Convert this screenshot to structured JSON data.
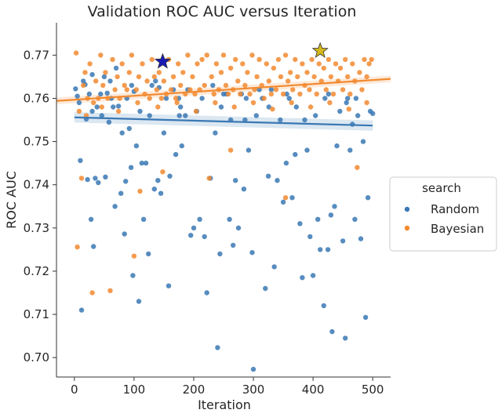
{
  "chart_data": {
    "type": "scatter",
    "title": "Validation ROC AUC versus Iteration",
    "xlabel": "Iteration",
    "ylabel": "ROC AUC",
    "xlim": [
      -30,
      530
    ],
    "ylim": [
      0.6955,
      0.7775
    ],
    "xticks": [
      0,
      100,
      200,
      300,
      400,
      500
    ],
    "yticks": [
      0.7,
      0.71,
      0.72,
      0.73,
      0.74,
      0.75,
      0.76,
      0.77
    ],
    "grid": false,
    "legend": {
      "title": "search",
      "location": "center-right outside",
      "entries": [
        "Random",
        "Bayesian"
      ]
    },
    "series": [
      {
        "name": "Random",
        "color": "#3a78b4",
        "marker": "dot",
        "trend": {
          "x": [
            0,
            500
          ],
          "y": [
            0.7556,
            0.7537
          ],
          "band": 0.0012
        },
        "best": {
          "x": 148,
          "y": 0.7685,
          "marker": "star",
          "color": "#1a1ab4"
        },
        "points": [
          [
            2,
            0.7622
          ],
          [
            5,
            0.7605
          ],
          [
            8,
            0.759
          ],
          [
            10,
            0.7456
          ],
          [
            12,
            0.711
          ],
          [
            15,
            0.764
          ],
          [
            18,
            0.7632
          ],
          [
            20,
            0.7552
          ],
          [
            22,
            0.7412
          ],
          [
            25,
            0.761
          ],
          [
            28,
            0.732
          ],
          [
            30,
            0.7655
          ],
          [
            32,
            0.7257
          ],
          [
            35,
            0.7415
          ],
          [
            38,
            0.758
          ],
          [
            40,
            0.7405
          ],
          [
            44,
            0.761
          ],
          [
            46,
            0.756
          ],
          [
            50,
            0.765
          ],
          [
            52,
            0.7418
          ],
          [
            55,
            0.7612
          ],
          [
            58,
            0.7545
          ],
          [
            60,
            0.764
          ],
          [
            65,
            0.758
          ],
          [
            68,
            0.735
          ],
          [
            70,
            0.767
          ],
          [
            74,
            0.7582
          ],
          [
            78,
            0.738
          ],
          [
            80,
            0.752
          ],
          [
            84,
            0.7286
          ],
          [
            86,
            0.7408
          ],
          [
            88,
            0.76
          ],
          [
            92,
            0.753
          ],
          [
            95,
            0.744
          ],
          [
            98,
            0.719
          ],
          [
            100,
            0.7616
          ],
          [
            104,
            0.749
          ],
          [
            108,
            0.713
          ],
          [
            110,
            0.757
          ],
          [
            113,
            0.745
          ],
          [
            116,
            0.732
          ],
          [
            120,
            0.745
          ],
          [
            124,
            0.724
          ],
          [
            126,
            0.756
          ],
          [
            130,
            0.763
          ],
          [
            134,
            0.739
          ],
          [
            136,
            0.764
          ],
          [
            140,
            0.741
          ],
          [
            142,
            0.7625
          ],
          [
            145,
            0.738
          ],
          [
            150,
            0.752
          ],
          [
            154,
            0.76
          ],
          [
            158,
            0.7166
          ],
          [
            160,
            0.742
          ],
          [
            166,
            0.762
          ],
          [
            170,
            0.747
          ],
          [
            175,
            0.76
          ],
          [
            178,
            0.758
          ],
          [
            180,
            0.749
          ],
          [
            186,
            0.756
          ],
          [
            190,
            0.762
          ],
          [
            195,
            0.7283
          ],
          [
            200,
            0.73
          ],
          [
            205,
            0.757
          ],
          [
            210,
            0.732
          ],
          [
            214,
            0.76
          ],
          [
            218,
            0.728
          ],
          [
            222,
            0.715
          ],
          [
            228,
            0.7415
          ],
          [
            232,
            0.763
          ],
          [
            236,
            0.752
          ],
          [
            240,
            0.7023
          ],
          [
            244,
            0.724
          ],
          [
            250,
            0.761
          ],
          [
            255,
            0.761
          ],
          [
            260,
            0.732
          ],
          [
            262,
            0.755
          ],
          [
            266,
            0.726
          ],
          [
            270,
            0.741
          ],
          [
            275,
            0.73
          ],
          [
            280,
            0.761
          ],
          [
            284,
            0.739
          ],
          [
            288,
            0.76
          ],
          [
            292,
            0.748
          ],
          [
            298,
            0.7243
          ],
          [
            300,
            0.6973
          ],
          [
            305,
            0.756
          ],
          [
            310,
            0.762
          ],
          [
            315,
            0.76
          ],
          [
            320,
            0.716
          ],
          [
            325,
            0.742
          ],
          [
            330,
            0.762
          ],
          [
            335,
            0.721
          ],
          [
            340,
            0.741
          ],
          [
            345,
            0.755
          ],
          [
            350,
            0.736
          ],
          [
            355,
            0.745
          ],
          [
            360,
            0.76
          ],
          [
            365,
            0.737
          ],
          [
            370,
            0.747
          ],
          [
            372,
            0.758
          ],
          [
            378,
            0.731
          ],
          [
            382,
            0.7185
          ],
          [
            386,
            0.755
          ],
          [
            390,
            0.748
          ],
          [
            395,
            0.728
          ],
          [
            400,
            0.719
          ],
          [
            404,
            0.756
          ],
          [
            408,
            0.732
          ],
          [
            412,
            0.725
          ],
          [
            418,
            0.712
          ],
          [
            420,
            0.76
          ],
          [
            425,
            0.725
          ],
          [
            430,
            0.733
          ],
          [
            432,
            0.706
          ],
          [
            436,
            0.735
          ],
          [
            440,
            0.749
          ],
          [
            445,
            0.757
          ],
          [
            450,
            0.727
          ],
          [
            454,
            0.7045
          ],
          [
            458,
            0.76
          ],
          [
            462,
            0.748
          ],
          [
            466,
            0.754
          ],
          [
            470,
            0.732
          ],
          [
            475,
            0.756
          ],
          [
            480,
            0.7275
          ],
          [
            484,
            0.75
          ],
          [
            488,
            0.7093
          ],
          [
            492,
            0.737
          ],
          [
            496,
            0.757
          ],
          [
            500,
            0.7565
          ],
          [
            30,
            0.757
          ],
          [
            62,
            0.76
          ],
          [
            96,
            0.763
          ],
          [
            176,
            0.756
          ],
          [
            246,
            0.758
          ],
          [
            286,
            0.755
          ],
          [
            326,
            0.758
          ],
          [
            356,
            0.761
          ],
          [
            426,
            0.761
          ],
          [
            456,
            0.759
          ],
          [
            472,
            0.76
          ]
        ]
      },
      {
        "name": "Bayesian",
        "color": "#f28a30",
        "marker": "dot",
        "trend": {
          "x": [
            -30,
            530
          ],
          "y": [
            0.7594,
            0.7645
          ],
          "band": 0.0008
        },
        "best": {
          "x": 412,
          "y": 0.771,
          "marker": "star",
          "color": "#d4b81c"
        },
        "points": [
          [
            3,
            0.7705
          ],
          [
            5,
            0.7256
          ],
          [
            8,
            0.757
          ],
          [
            12,
            0.7415
          ],
          [
            15,
            0.763
          ],
          [
            18,
            0.766
          ],
          [
            22,
            0.76
          ],
          [
            26,
            0.768
          ],
          [
            30,
            0.715
          ],
          [
            32,
            0.759
          ],
          [
            36,
            0.764
          ],
          [
            40,
            0.76
          ],
          [
            44,
            0.77
          ],
          [
            48,
            0.763
          ],
          [
            52,
            0.766
          ],
          [
            56,
            0.76
          ],
          [
            60,
            0.7155
          ],
          [
            64,
            0.769
          ],
          [
            68,
            0.762
          ],
          [
            72,
            0.765
          ],
          [
            76,
            0.76
          ],
          [
            80,
            0.768
          ],
          [
            84,
            0.763
          ],
          [
            88,
            0.762
          ],
          [
            92,
            0.766
          ],
          [
            96,
            0.77
          ],
          [
            100,
            0.7235
          ],
          [
            104,
            0.762
          ],
          [
            108,
            0.765
          ],
          [
            110,
            0.7385
          ],
          [
            114,
            0.768
          ],
          [
            118,
            0.761
          ],
          [
            122,
            0.764
          ],
          [
            126,
            0.76
          ],
          [
            130,
            0.769
          ],
          [
            134,
            0.765
          ],
          [
            138,
            0.762
          ],
          [
            142,
            0.766
          ],
          [
            146,
            0.76
          ],
          [
            150,
            0.764
          ],
          [
            154,
            0.761
          ],
          [
            158,
            0.769
          ],
          [
            162,
            0.762
          ],
          [
            166,
            0.765
          ],
          [
            170,
            0.76
          ],
          [
            174,
            0.768
          ],
          [
            178,
            0.763
          ],
          [
            182,
            0.766
          ],
          [
            186,
            0.761
          ],
          [
            190,
            0.77
          ],
          [
            194,
            0.762
          ],
          [
            198,
            0.765
          ],
          [
            202,
            0.761
          ],
          [
            206,
            0.768
          ],
          [
            210,
            0.762
          ],
          [
            214,
            0.769
          ],
          [
            218,
            0.763
          ],
          [
            222,
            0.77
          ],
          [
            226,
            0.7415
          ],
          [
            230,
            0.765
          ],
          [
            234,
            0.761
          ],
          [
            238,
            0.768
          ],
          [
            242,
            0.762
          ],
          [
            246,
            0.766
          ],
          [
            250,
            0.77
          ],
          [
            254,
            0.763
          ],
          [
            258,
            0.761
          ],
          [
            262,
            0.767
          ],
          [
            266,
            0.762
          ],
          [
            270,
            0.769
          ],
          [
            274,
            0.764
          ],
          [
            278,
            0.761
          ],
          [
            282,
            0.768
          ],
          [
            286,
            0.763
          ],
          [
            290,
            0.766
          ],
          [
            294,
            0.761
          ],
          [
            298,
            0.77
          ],
          [
            302,
            0.762
          ],
          [
            306,
            0.765
          ],
          [
            310,
            0.769
          ],
          [
            314,
            0.763
          ],
          [
            318,
            0.76
          ],
          [
            322,
            0.768
          ],
          [
            326,
            0.764
          ],
          [
            330,
            0.761
          ],
          [
            334,
            0.767
          ],
          [
            338,
            0.762
          ],
          [
            342,
            0.769
          ],
          [
            346,
            0.765
          ],
          [
            350,
            0.761
          ],
          [
            354,
            0.77
          ],
          [
            358,
            0.764
          ],
          [
            362,
            0.766
          ],
          [
            366,
            0.762
          ],
          [
            370,
            0.769
          ],
          [
            374,
            0.765
          ],
          [
            378,
            0.761
          ],
          [
            382,
            0.768
          ],
          [
            386,
            0.763
          ],
          [
            390,
            0.766
          ],
          [
            394,
            0.762
          ],
          [
            398,
            0.769
          ],
          [
            402,
            0.765
          ],
          [
            406,
            0.761
          ],
          [
            410,
            0.768
          ],
          [
            414,
            0.764
          ],
          [
            418,
            0.767
          ],
          [
            422,
            0.762
          ],
          [
            426,
            0.769
          ],
          [
            430,
            0.765
          ],
          [
            434,
            0.761
          ],
          [
            438,
            0.768
          ],
          [
            442,
            0.764
          ],
          [
            446,
            0.767
          ],
          [
            450,
            0.762
          ],
          [
            454,
            0.769
          ],
          [
            458,
            0.765
          ],
          [
            462,
            0.761
          ],
          [
            466,
            0.768
          ],
          [
            470,
            0.764
          ],
          [
            474,
            0.744
          ],
          [
            478,
            0.766
          ],
          [
            482,
            0.762
          ],
          [
            486,
            0.769
          ],
          [
            490,
            0.765
          ],
          [
            494,
            0.768
          ],
          [
            498,
            0.769
          ],
          [
            20,
            0.756
          ],
          [
            46,
            0.758
          ],
          [
            74,
            0.757
          ],
          [
            106,
            0.759
          ],
          [
            140,
            0.758
          ],
          [
            172,
            0.759
          ],
          [
            204,
            0.757
          ],
          [
            236,
            0.759
          ],
          [
            268,
            0.758
          ],
          [
            300,
            0.759
          ],
          [
            332,
            0.7575
          ],
          [
            364,
            0.759
          ],
          [
            396,
            0.758
          ],
          [
            428,
            0.759
          ],
          [
            460,
            0.7575
          ],
          [
            490,
            0.759
          ],
          [
            354,
            0.737
          ],
          [
            262,
            0.748
          ],
          [
            148,
            0.743
          ]
        ]
      }
    ]
  }
}
